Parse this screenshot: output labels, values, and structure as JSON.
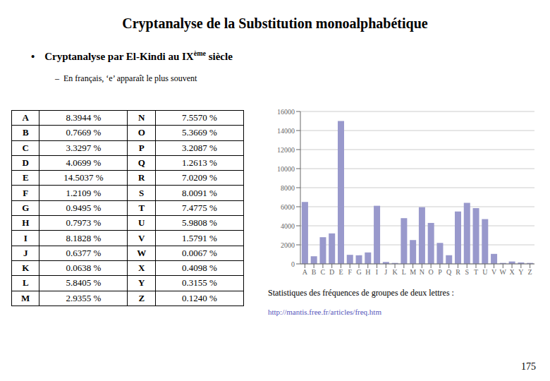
{
  "chart_data": [
    {
      "type": "bar",
      "title": "Cryptanalyse de la Substitution monoalphabétique",
      "categories": [
        "A",
        "B",
        "C",
        "D",
        "E",
        "F",
        "G",
        "H",
        "I",
        "J",
        "K",
        "L",
        "M",
        "N",
        "O",
        "P",
        "Q",
        "R",
        "S",
        "T",
        "U",
        "V",
        "W",
        "X",
        "Y",
        "Z"
      ],
      "values": [
        6500,
        800,
        2800,
        3200,
        15000,
        950,
        900,
        1200,
        6100,
        200,
        100,
        4800,
        2500,
        5950,
        4300,
        2200,
        900,
        5500,
        6400,
        5850,
        4700,
        1050,
        100,
        250,
        150,
        100
      ],
      "color": "#9999CC",
      "ylim": [
        0,
        16000
      ],
      "yticks": [
        0,
        2000,
        4000,
        6000,
        8000,
        10000,
        12000,
        14000,
        16000
      ],
      "grid": true,
      "annotations": [
        "•",
        "Cryptanalyse par El-Kindi au IX",
        "ème",
        " siècle",
        "–  En français, ‘e’ apparaît le plus souvent",
        "Statistiques des fréquences de groupes de deux lettres :",
        "http://mantis.free.fr/articles/freq.htm",
        "175"
      ]
    },
    {
      "type": "table",
      "categories": [
        "A",
        "B",
        "C",
        "D",
        "E",
        "F",
        "G",
        "H",
        "I",
        "J",
        "K",
        "L",
        "M",
        "N",
        "O",
        "P",
        "Q",
        "R",
        "S",
        "T",
        "U",
        "V",
        "W",
        "X",
        "Y",
        "Z"
      ],
      "values": [
        8.3944,
        0.7669,
        3.3297,
        4.0699,
        14.5037,
        1.2109,
        0.9495,
        0.7973,
        8.1828,
        0.6377,
        0.0638,
        5.8405,
        2.9355,
        7.557,
        5.3669,
        3.2087,
        1.2613,
        7.0209,
        8.0091,
        7.4775,
        5.9808,
        1.5791,
        0.0067,
        0.4098,
        0.3155,
        0.124
      ],
      "value_labels": [
        "8.3944 %",
        "0.7669 %",
        "3.3297 %",
        "4.0699 %",
        "14.5037 %",
        "1.2109 %",
        "0.9495 %",
        "0.7973 %",
        "8.1828 %",
        "0.6377 %",
        "0.0638 %",
        "5.8405 %",
        "2.9355 %",
        "7.5570 %",
        "5.3669 %",
        "3.2087 %",
        "1.2613 %",
        "7.0209 %",
        "8.0091 %",
        "7.4775 %",
        "5.9808 %",
        "1.5791 %",
        "0.0067 %",
        "0.4098 %",
        "0.3155 %",
        "0.1240 %"
      ]
    }
  ]
}
